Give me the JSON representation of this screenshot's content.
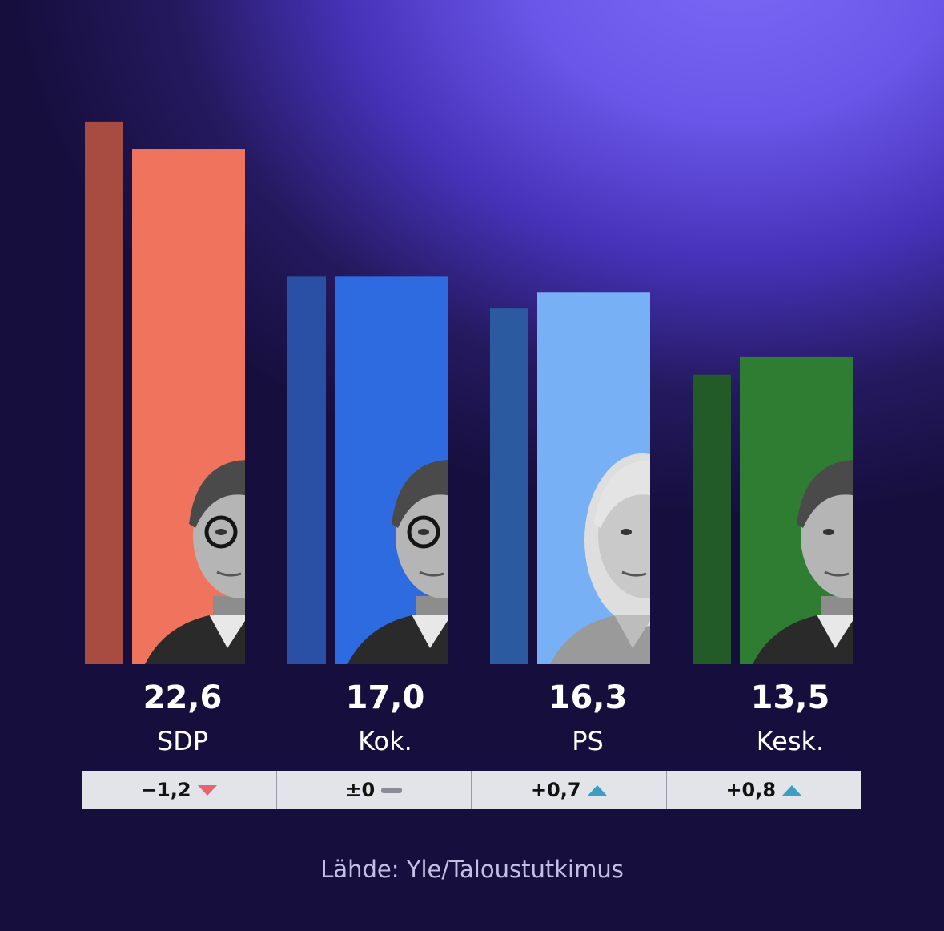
{
  "chart_data": {
    "type": "bar",
    "categories": [
      "SDP",
      "Kok.",
      "PS",
      "Kesk."
    ],
    "series": [
      {
        "values": [
          23.8,
          17.0,
          15.6,
          12.7
        ],
        "colors": [
          "#a84b41",
          "#2a50a5",
          "#2c5aa0",
          "#225a28"
        ]
      },
      {
        "values": [
          22.6,
          17.0,
          16.3,
          13.5
        ],
        "colors": [
          "#ef735d",
          "#2e6be0",
          "#78b0f5",
          "#2e7d33"
        ]
      }
    ],
    "value_labels": [
      "22,6",
      "17,0",
      "16,3",
      "13,5"
    ],
    "changes": [
      {
        "text": "−1,2",
        "direction": "down"
      },
      {
        "text": "±0",
        "direction": "none"
      },
      {
        "text": "+0,7",
        "direction": "up"
      },
      {
        "text": "+0,8",
        "direction": "up"
      }
    ],
    "source": "Lähde: Yle/Taloustutkimus"
  }
}
